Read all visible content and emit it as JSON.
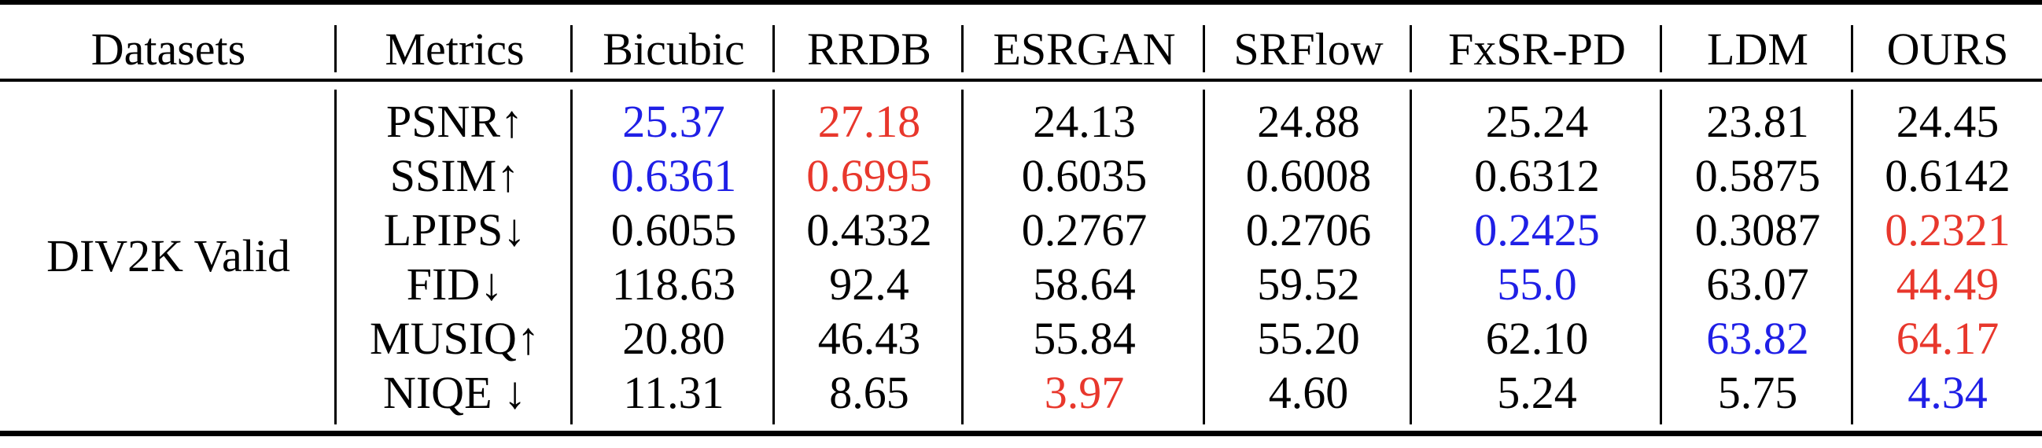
{
  "table": {
    "columns": [
      "Datasets",
      "Metrics",
      "Bicubic",
      "RRDB",
      "ESRGAN",
      "SRFlow",
      "FxSR-PD",
      "LDM",
      "OURS"
    ],
    "dataset": "DIV2K Valid",
    "rows": [
      {
        "metric": "PSNR↑",
        "values": [
          "25.37",
          "27.18",
          "24.13",
          "24.88",
          "25.24",
          "23.81",
          "24.45"
        ],
        "colors": [
          "blue",
          "red",
          "black",
          "black",
          "black",
          "black",
          "black"
        ]
      },
      {
        "metric": "SSIM↑",
        "values": [
          "0.6361",
          "0.6995",
          "0.6035",
          "0.6008",
          "0.6312",
          "0.5875",
          "0.6142"
        ],
        "colors": [
          "blue",
          "red",
          "black",
          "black",
          "black",
          "black",
          "black"
        ]
      },
      {
        "metric": "LPIPS↓",
        "values": [
          "0.6055",
          "0.4332",
          "0.2767",
          "0.2706",
          "0.2425",
          "0.3087",
          "0.2321"
        ],
        "colors": [
          "black",
          "black",
          "black",
          "black",
          "blue",
          "black",
          "red"
        ]
      },
      {
        "metric": "FID↓",
        "values": [
          "118.63",
          "92.4",
          "58.64",
          "59.52",
          "55.0",
          "63.07",
          "44.49"
        ],
        "colors": [
          "black",
          "black",
          "black",
          "black",
          "blue",
          "black",
          "red"
        ]
      },
      {
        "metric": "MUSIQ↑",
        "values": [
          "20.80",
          "46.43",
          "55.84",
          "55.20",
          "62.10",
          "63.82",
          "64.17"
        ],
        "colors": [
          "black",
          "black",
          "black",
          "black",
          "black",
          "blue",
          "red"
        ]
      },
      {
        "metric": "NIQE ↓",
        "values": [
          "11.31",
          "8.65",
          "3.97",
          "4.60",
          "5.24",
          "5.75",
          "4.34"
        ],
        "colors": [
          "black",
          "black",
          "red",
          "black",
          "black",
          "black",
          "blue"
        ]
      }
    ]
  },
  "colors": {
    "red": "#e8372c",
    "blue": "#1f1fe6",
    "black": "#000000"
  }
}
